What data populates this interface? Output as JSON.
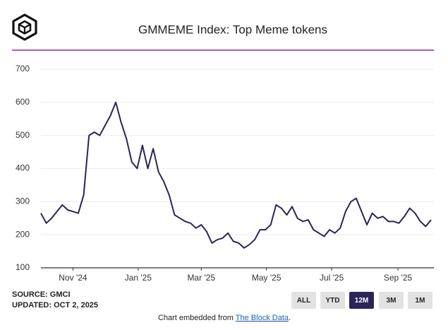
{
  "chart_data": {
    "type": "line",
    "title": "GMMEME Index: Top Meme tokens",
    "values": [
      265,
      235,
      250,
      270,
      290,
      275,
      270,
      265,
      320,
      500,
      510,
      500,
      530,
      560,
      600,
      540,
      490,
      420,
      400,
      470,
      400,
      460,
      390,
      360,
      320,
      260,
      250,
      240,
      235,
      220,
      230,
      210,
      175,
      185,
      190,
      205,
      180,
      175,
      160,
      170,
      185,
      215,
      215,
      230,
      290,
      280,
      260,
      285,
      250,
      240,
      245,
      215,
      205,
      195,
      215,
      205,
      220,
      270,
      300,
      310,
      270,
      230,
      265,
      250,
      255,
      240,
      240,
      235,
      255,
      280,
      265,
      240,
      225,
      245
    ],
    "color": "#2b2458",
    "xlim": [
      0,
      73
    ],
    "xticks": [
      {
        "value": 6,
        "label": "Nov '24"
      },
      {
        "value": 18.2,
        "label": "Jan '25"
      },
      {
        "value": 30,
        "label": "Mar '25"
      },
      {
        "value": 42.2,
        "label": "May '25"
      },
      {
        "value": 54.4,
        "label": "Jul '25"
      },
      {
        "value": 66.8,
        "label": "Sep '25"
      }
    ],
    "ylim": [
      100,
      700
    ],
    "yticks": [
      100,
      200,
      300,
      400,
      500,
      600,
      700
    ],
    "grid": true,
    "source": "SOURCE: GMCI",
    "updated": "UPDATED: OCT 2, 2025",
    "range_buttons": [
      "ALL",
      "YTD",
      "12M",
      "3M",
      "1M"
    ],
    "active_button": 2,
    "embed_note": {
      "prefix": "Chart embedded from ",
      "link": "The Block Data",
      "suffix": "."
    }
  }
}
